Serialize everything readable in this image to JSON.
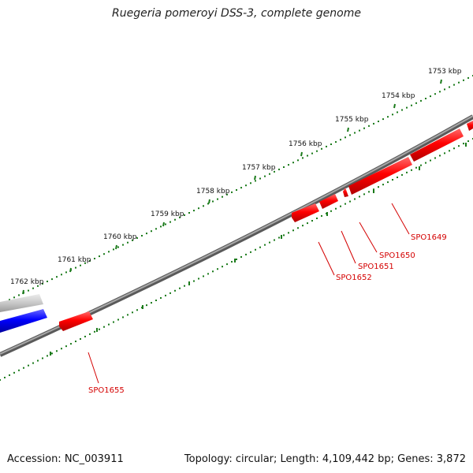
{
  "title": "Ruegeria pomeroyi DSS-3, complete genome",
  "footer": {
    "accession": "Accession: NC_003911",
    "summary": "Topology: circular; Length: 4,109,442 bp; Genes: 3,872"
  },
  "scale": {
    "major_labels": [
      "1753 kbp",
      "1754 kbp",
      "1755 kbp",
      "1756 kbp",
      "1757 kbp",
      "1758 kbp",
      "1759 kbp",
      "1760 kbp",
      "1761 kbp",
      "1762 kbp"
    ]
  },
  "genes": {
    "labels": [
      "SPO1649",
      "SPO1650",
      "SPO1651",
      "SPO1652",
      "SPO1655"
    ]
  },
  "colors": {
    "gene_red": "#ff0000",
    "gene_blue": "#0000ff",
    "gene_grey": "#c8c8c8",
    "backbone": "#7a7a7a",
    "tick_green": "#1a7a1a",
    "label_red": "#d40000"
  }
}
